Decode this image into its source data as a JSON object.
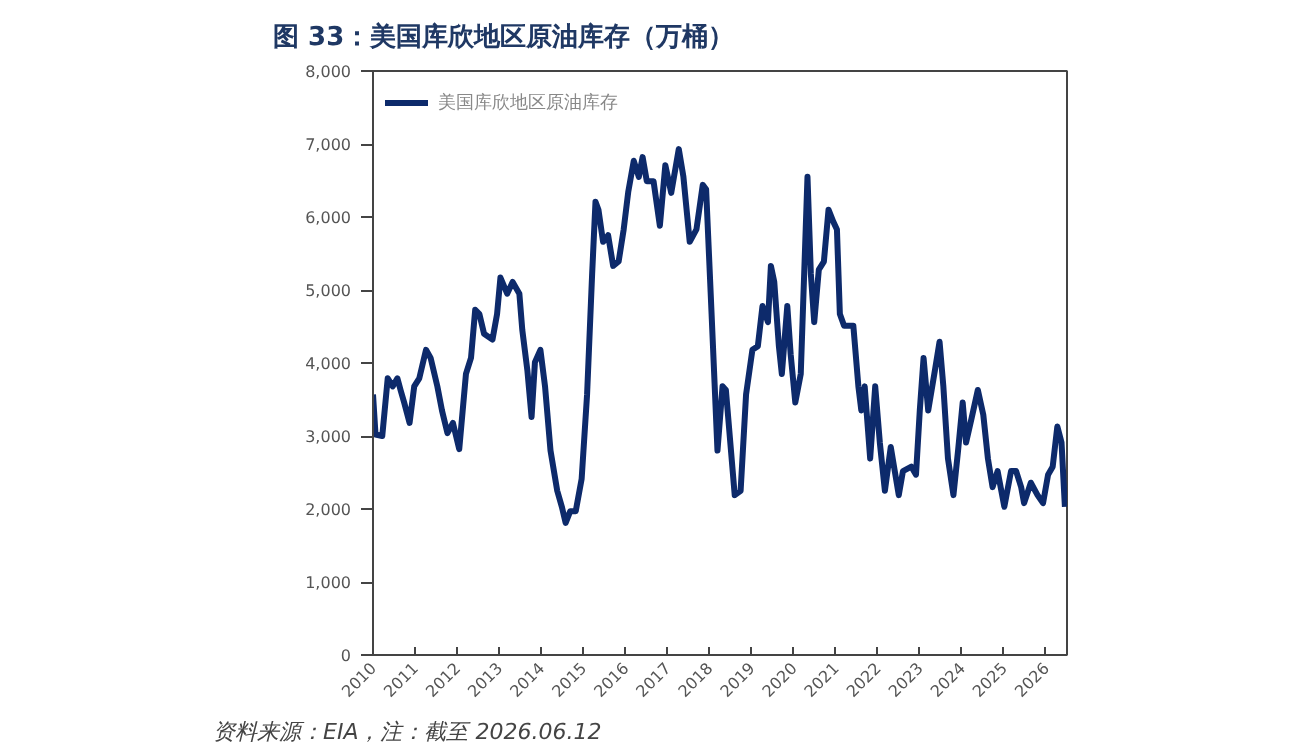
{
  "chart_data": {
    "type": "line",
    "title": "图 33：美国库欣地区原油库存（万桶）",
    "annotations": [
      "资料来源：EIA，注：截至 2026.06.12"
    ],
    "x": [
      2010.0,
      2010.06,
      2010.22,
      2010.35,
      2010.47,
      2010.58,
      2010.66,
      2010.74,
      2010.87,
      2010.98,
      2011.1,
      2011.26,
      2011.37,
      2011.53,
      2011.64,
      2011.77,
      2011.9,
      2012.05,
      2012.21,
      2012.33,
      2012.43,
      2012.53,
      2012.64,
      2012.84,
      2012.95,
      2013.03,
      2013.19,
      2013.32,
      2013.48,
      2013.55,
      2013.67,
      2013.77,
      2013.85,
      2013.98,
      2014.09,
      2014.22,
      2014.38,
      2014.49,
      2014.58,
      2014.69,
      2014.82,
      2014.96,
      2015.09,
      2015.21,
      2015.29,
      2015.36,
      2015.47,
      2015.59,
      2015.71,
      2015.84,
      2015.96,
      2016.07,
      2016.2,
      2016.32,
      2016.41,
      2016.51,
      2016.67,
      2016.82,
      2016.95,
      2017.09,
      2017.27,
      2017.38,
      2017.53,
      2017.69,
      2017.84,
      2017.92,
      2018.05,
      2018.19,
      2018.31,
      2018.39,
      2018.6,
      2018.74,
      2018.87,
      2019.02,
      2019.15,
      2019.26,
      2019.39,
      2019.46,
      2019.54,
      2019.65,
      2019.72,
      2019.85,
      2019.93,
      2020.04,
      2020.17,
      2020.33,
      2020.41,
      2020.49,
      2020.6,
      2020.72,
      2020.83,
      2020.94,
      2021.03,
      2021.1,
      2021.2,
      2021.42,
      2021.54,
      2021.61,
      2021.69,
      2021.82,
      2021.94,
      2022.05,
      2022.17,
      2022.31,
      2022.5,
      2022.6,
      2022.8,
      2022.91,
      2023.0,
      2023.09,
      2023.2,
      2023.36,
      2023.47,
      2023.56,
      2023.67,
      2023.8,
      2023.91,
      2024.02,
      2024.1,
      2024.23,
      2024.38,
      2024.51,
      2024.62,
      2024.73,
      2024.85,
      2025.01,
      2025.17,
      2025.29,
      2025.41,
      2025.48,
      2025.64,
      2025.8,
      2025.93,
      2026.05,
      2026.16,
      2026.27,
      2026.37,
      2026.45
    ],
    "series": [
      {
        "name": "美国库欣地区原油库存",
        "color": "#0d2a6b",
        "values": [
          3570,
          3020,
          3000,
          3790,
          3680,
          3790,
          3620,
          3460,
          3180,
          3680,
          3790,
          4180,
          4070,
          3680,
          3350,
          3040,
          3180,
          2820,
          3850,
          4070,
          4730,
          4670,
          4400,
          4320,
          4670,
          5170,
          4950,
          5110,
          4950,
          4450,
          3900,
          3260,
          4010,
          4180,
          3680,
          2800,
          2250,
          2030,
          1810,
          1970,
          1970,
          2410,
          3570,
          5220,
          6210,
          6100,
          5660,
          5750,
          5330,
          5390,
          5830,
          6350,
          6770,
          6550,
          6820,
          6490,
          6490,
          5880,
          6710,
          6330,
          6930,
          6550,
          5660,
          5830,
          6440,
          6380,
          4670,
          2800,
          3680,
          3630,
          2190,
          2250,
          3570,
          4180,
          4230,
          4780,
          4560,
          5330,
          5110,
          4230,
          3850,
          4780,
          4120,
          3460,
          3850,
          6550,
          5220,
          4560,
          5280,
          5390,
          6100,
          5940,
          5830,
          4670,
          4510,
          4510,
          3680,
          3350,
          3680,
          2690,
          3680,
          2910,
          2250,
          2850,
          2190,
          2520,
          2580,
          2470,
          3350,
          4070,
          3350,
          3900,
          4290,
          3680,
          2690,
          2190,
          2800,
          3460,
          2910,
          3240,
          3630,
          3290,
          2690,
          2300,
          2520,
          2030,
          2520,
          2520,
          2300,
          2080,
          2360,
          2190,
          2080,
          2470,
          2580,
          3130,
          2910,
          2030
        ]
      }
    ],
    "xlim": [
      2010,
      2026.5
    ],
    "xticks": [
      2010,
      2011,
      2012,
      2013,
      2014,
      2015,
      2016,
      2017,
      2018,
      2019,
      2020,
      2021,
      2022,
      2023,
      2024,
      2025,
      2026
    ],
    "ylim": [
      0,
      8000
    ],
    "yticks": [
      0,
      {
        "value": 1000,
        "label": "1,000"
      },
      {
        "value": 2000,
        "label": "2,000"
      },
      {
        "value": 3000,
        "label": "3,000"
      },
      {
        "value": 4000,
        "label": "4,000"
      },
      {
        "value": 5000,
        "label": "5,000"
      },
      {
        "value": 6000,
        "label": "6,000"
      },
      {
        "value": 7000,
        "label": "7,000"
      },
      {
        "value": 8000,
        "label": "8,000"
      }
    ],
    "legend": "top left"
  }
}
